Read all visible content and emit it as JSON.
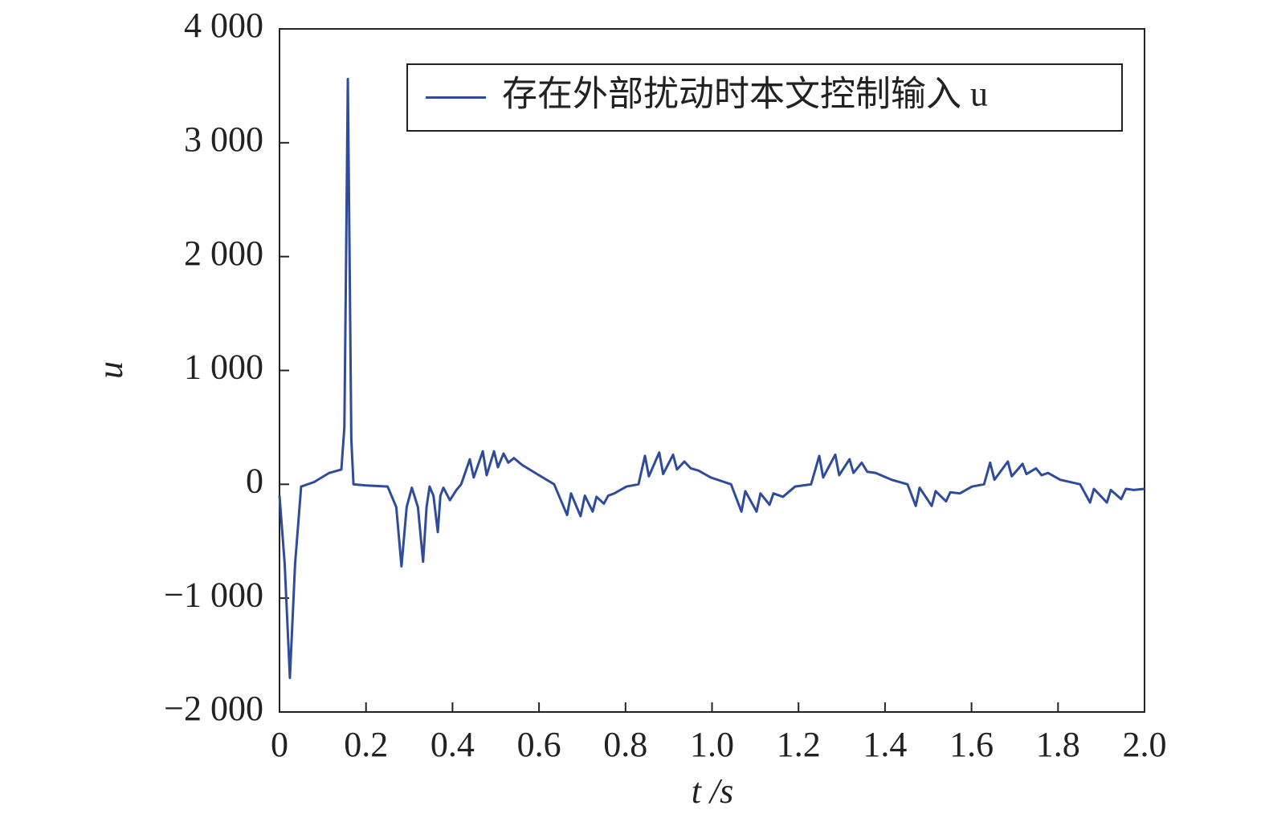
{
  "chart_data": {
    "type": "line",
    "xlabel": "t /s",
    "ylabel": "u",
    "xlim": [
      0,
      2.0
    ],
    "ylim": [
      -2000,
      4000
    ],
    "xticks": [
      0,
      0.2,
      0.4,
      0.6,
      0.8,
      {
        "value": 1.0,
        "label": "1.0"
      },
      1.2,
      1.4,
      1.6,
      1.8,
      {
        "value": 2.0,
        "label": "2.0"
      }
    ],
    "yticks": [
      {
        "value": -2000,
        "label": "−2 000"
      },
      {
        "value": -1000,
        "label": "−1 000"
      },
      0,
      {
        "value": 1000,
        "label": "1 000"
      },
      {
        "value": 2000,
        "label": "2 000"
      },
      {
        "value": 3000,
        "label": "3 000"
      },
      {
        "value": 4000,
        "label": "4 000"
      }
    ],
    "legend": "upper right",
    "x": [
      0,
      0.012,
      0.024,
      0.036,
      0.05,
      0.08,
      0.115,
      0.143,
      0.15,
      0.154,
      0.158,
      0.162,
      0.166,
      0.171,
      0.2,
      0.25,
      0.27,
      0.282,
      0.294,
      0.306,
      0.32,
      0.332,
      0.34,
      0.347,
      0.356,
      0.366,
      0.372,
      0.379,
      0.394,
      0.409,
      0.42,
      0.44,
      0.449,
      0.47,
      0.479,
      0.496,
      0.505,
      0.518,
      0.529,
      0.542,
      0.561,
      0.6,
      0.635,
      0.665,
      0.674,
      0.696,
      0.706,
      0.724,
      0.733,
      0.75,
      0.76,
      0.774,
      0.802,
      0.83,
      0.845,
      0.854,
      0.878,
      0.887,
      0.91,
      0.919,
      0.936,
      0.951,
      0.969,
      0.997,
      1.044,
      1.068,
      1.077,
      1.103,
      1.112,
      1.133,
      1.142,
      1.164,
      1.192,
      1.229,
      1.248,
      1.257,
      1.285,
      1.294,
      1.318,
      1.327,
      1.346,
      1.359,
      1.378,
      1.415,
      1.452,
      1.471,
      1.48,
      1.508,
      1.517,
      1.541,
      1.551,
      1.573,
      1.601,
      1.629,
      1.643,
      1.653,
      1.684,
      1.693,
      1.718,
      1.727,
      1.749,
      1.762,
      1.777,
      1.805,
      1.851,
      1.874,
      1.883,
      1.913,
      1.922,
      1.946,
      1.957,
      1.975,
      2.0
    ],
    "series": [
      {
        "name": "存在外部扰动时本文控制输入 u",
        "color": "#2f4b9c",
        "values": [
          -100,
          -700,
          -1700,
          -700,
          -20,
          20,
          100,
          130,
          500,
          2000,
          3560,
          2000,
          400,
          0,
          -10,
          -20,
          -200,
          -720,
          -200,
          -30,
          -200,
          -680,
          -200,
          -20,
          -100,
          -420,
          -100,
          -30,
          -140,
          -50,
          0,
          220,
          60,
          290,
          80,
          290,
          150,
          270,
          190,
          230,
          170,
          80,
          0,
          -270,
          -80,
          -280,
          -100,
          -240,
          -110,
          -170,
          -100,
          -80,
          -20,
          0,
          250,
          70,
          280,
          90,
          260,
          130,
          200,
          140,
          120,
          60,
          0,
          -240,
          -60,
          -240,
          -80,
          -180,
          -80,
          -110,
          -20,
          0,
          250,
          60,
          260,
          80,
          220,
          100,
          190,
          110,
          100,
          40,
          0,
          -190,
          -30,
          -190,
          -60,
          -150,
          -70,
          -80,
          -20,
          0,
          190,
          40,
          200,
          70,
          180,
          90,
          140,
          80,
          100,
          40,
          0,
          -160,
          -40,
          -160,
          -50,
          -130,
          -40,
          -50,
          -40
        ]
      }
    ]
  }
}
